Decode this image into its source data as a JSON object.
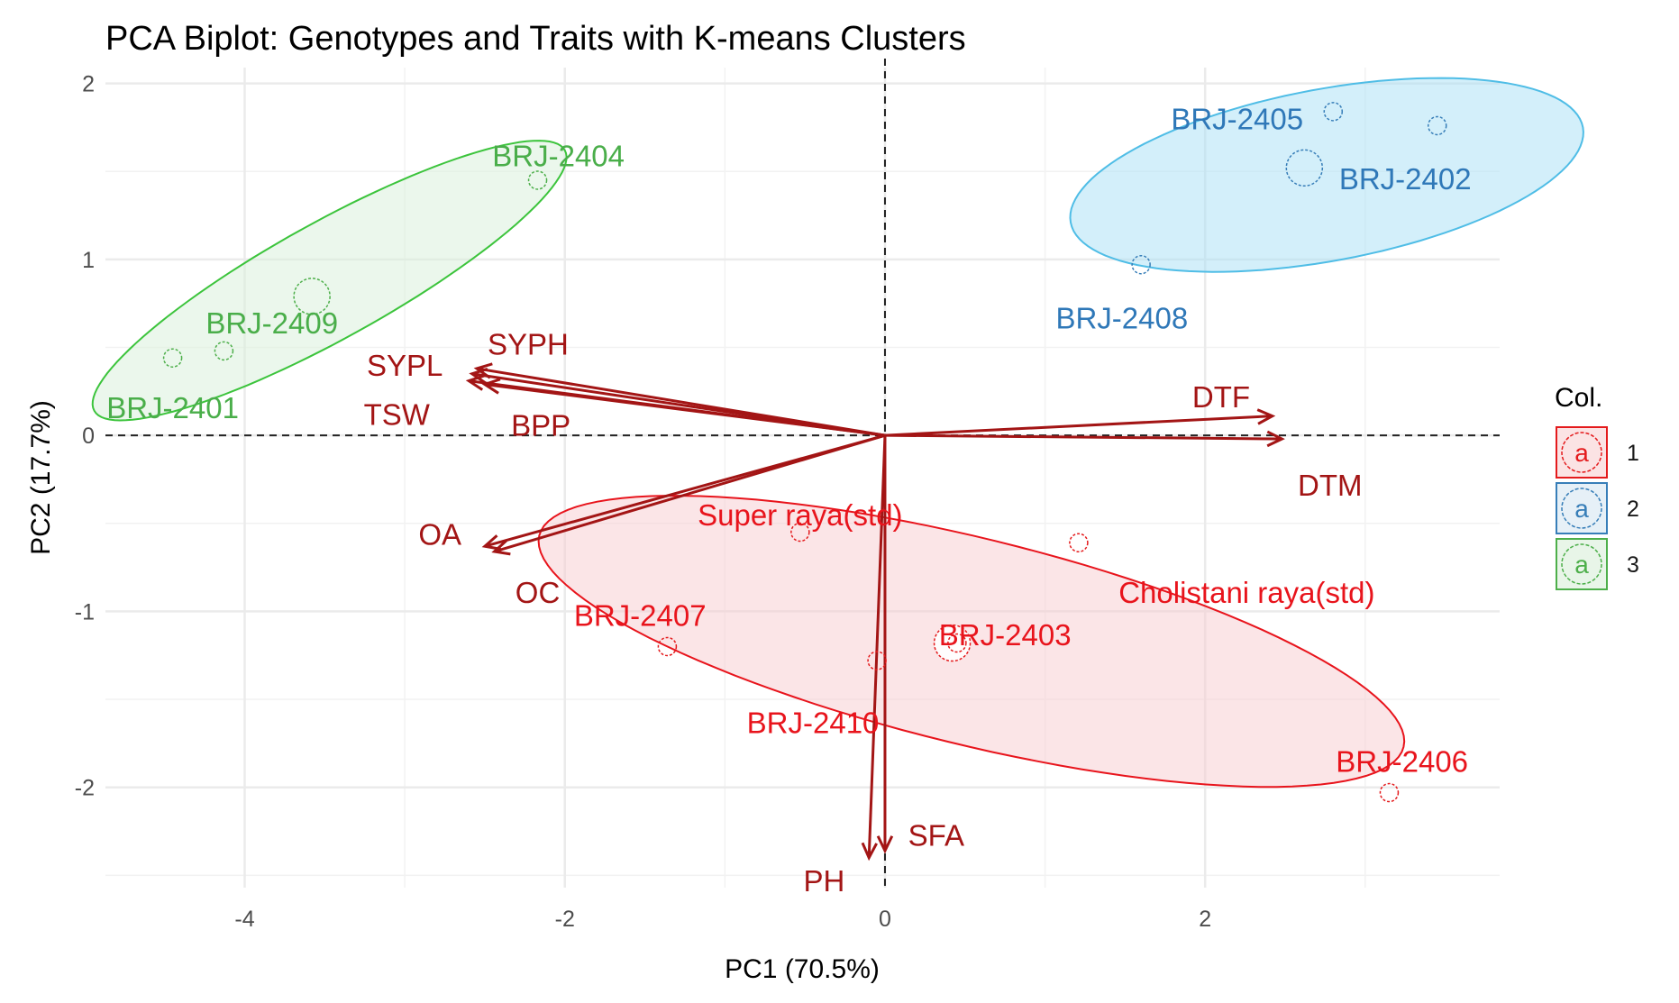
{
  "chart_data": {
    "type": "scatter",
    "title": "PCA Biplot: Genotypes and Traits with K-means Clusters",
    "xlabel": "PC1 (70.5%)",
    "ylabel": "PC2 (17.7%)",
    "xlim": [
      -4.87,
      3.84
    ],
    "ylim": [
      -2.57,
      2.09
    ],
    "x_ticks": [
      -4,
      -2,
      0,
      2
    ],
    "y_ticks": [
      -2,
      -1,
      0,
      1,
      2
    ],
    "x_minor_ticks": [
      -3,
      -1,
      1,
      3
    ],
    "y_minor_ticks": [
      -2.5,
      -1.5,
      -0.5,
      0.5,
      1.5
    ],
    "grid": true,
    "reference_lines": {
      "x": 0,
      "y": 0,
      "style": "dashed"
    },
    "legend": {
      "title": "Col.",
      "placement": "right",
      "entries": [
        {
          "label": "1",
          "glyph": "a",
          "color": "#e41a1c"
        },
        {
          "label": "2",
          "glyph": "a",
          "color": "#377eb8"
        },
        {
          "label": "3",
          "glyph": "a",
          "color": "#4daf4a"
        }
      ]
    },
    "clusters": [
      {
        "id": "1",
        "color": "#e41a1c",
        "label_color": "#e8141c",
        "fill": "#f8cbcf",
        "edge": "#e8141c",
        "ellipse": {
          "center": [
            0.54,
            -1.17
          ],
          "major": [
            2.7,
            -0.6
          ],
          "minor": [
            -0.15,
            -0.57
          ]
        },
        "centroid": [
          0.42,
          -1.18
        ]
      },
      {
        "id": "2",
        "color": "#377eb8",
        "label_color": "#2f78b8",
        "fill": "#a8e0f5",
        "edge": "#4fbde6",
        "ellipse": {
          "center": [
            2.76,
            1.48
          ],
          "major": [
            1.6,
            0.27
          ],
          "minor": [
            0.096,
            -0.48
          ]
        },
        "centroid": [
          2.62,
          1.52
        ]
      },
      {
        "id": "3",
        "color": "#4daf4a",
        "label_color": "#4aae4a",
        "fill": "#d7f0da",
        "edge": "#3cc43c",
        "ellipse": {
          "center": [
            -3.47,
            0.88
          ],
          "major": [
            1.47,
            0.74
          ],
          "minor": [
            0.175,
            -0.29
          ]
        },
        "centroid": [
          -3.58,
          0.79
        ]
      }
    ],
    "points": [
      {
        "name": "BRJ-2401",
        "x": -4.45,
        "y": 0.44,
        "cluster": "3",
        "label_dx": 0.0,
        "label_dy": -0.28,
        "anchor": "middle"
      },
      {
        "name": "BRJ-2409",
        "x": -4.13,
        "y": 0.48,
        "cluster": "3",
        "label_dx": 0.3,
        "label_dy": 0.16,
        "anchor": "middle"
      },
      {
        "name": "BRJ-2404",
        "x": -2.17,
        "y": 1.45,
        "cluster": "3",
        "label_dx": 0.13,
        "label_dy": 0.14,
        "anchor": "middle"
      },
      {
        "name": "BRJ-2405",
        "x": 2.8,
        "y": 1.84,
        "cluster": "2",
        "label_dx": -0.6,
        "label_dy": -0.04,
        "anchor": "middle"
      },
      {
        "name": "BRJ-2402",
        "x": 3.45,
        "y": 1.76,
        "cluster": "2",
        "label_dx": -0.2,
        "label_dy": -0.3,
        "anchor": "middle"
      },
      {
        "name": "BRJ-2408",
        "x": 1.6,
        "y": 0.97,
        "cluster": "2",
        "label_dx": -0.12,
        "label_dy": -0.3,
        "anchor": "middle"
      },
      {
        "name": "Super raya(std)",
        "x": -0.53,
        "y": -0.55,
        "cluster": "1",
        "label_dx": 0.0,
        "label_dy": 0.1,
        "anchor": "middle"
      },
      {
        "name": "Cholistani raya(std)",
        "x": 1.21,
        "y": -0.61,
        "cluster": "1",
        "label_dx": 1.05,
        "label_dy": -0.28,
        "anchor": "middle"
      },
      {
        "name": "BRJ-2407",
        "x": -1.36,
        "y": -1.2,
        "cluster": "1",
        "label_dx": -0.17,
        "label_dy": 0.18,
        "anchor": "middle"
      },
      {
        "name": "BRJ-2403",
        "x": 0.45,
        "y": -1.18,
        "cluster": "1",
        "label_dx": 0.3,
        "label_dy": 0.05,
        "anchor": "middle"
      },
      {
        "name": "BRJ-2410",
        "x": -0.05,
        "y": -1.28,
        "cluster": "1",
        "label_dx": -0.4,
        "label_dy": -0.35,
        "anchor": "middle"
      },
      {
        "name": "BRJ-2406",
        "x": 3.15,
        "y": -2.03,
        "cluster": "1",
        "label_dx": 0.08,
        "label_dy": 0.18,
        "anchor": "middle"
      }
    ],
    "variables": [
      {
        "name": "SYPH",
        "x": -2.55,
        "y": 0.38,
        "label_x": -2.23,
        "label_y": 0.52
      },
      {
        "name": "SYPL",
        "x": -2.58,
        "y": 0.35,
        "label_x": -3.0,
        "label_y": 0.4
      },
      {
        "name": "TSW",
        "x": -2.6,
        "y": 0.31,
        "label_x": -3.05,
        "label_y": 0.12
      },
      {
        "name": "BPP",
        "x": -2.5,
        "y": 0.29,
        "label_x": -2.15,
        "label_y": 0.06
      },
      {
        "name": "DTF",
        "x": 2.42,
        "y": 0.11,
        "label_x": 2.1,
        "label_y": 0.22
      },
      {
        "name": "DTM",
        "x": 2.48,
        "y": -0.02,
        "label_x": 2.78,
        "label_y": -0.28
      },
      {
        "name": "OA",
        "x": -2.5,
        "y": -0.63,
        "label_x": -2.78,
        "label_y": -0.56
      },
      {
        "name": "OC",
        "x": -2.44,
        "y": -0.66,
        "label_x": -2.17,
        "label_y": -0.89
      },
      {
        "name": "PH",
        "x": -0.1,
        "y": -2.4,
        "label_x": -0.38,
        "label_y": -2.53
      },
      {
        "name": "SFA",
        "x": 0.0,
        "y": -2.36,
        "label_x": 0.32,
        "label_y": -2.27
      }
    ],
    "arrow_color": "#a31515"
  }
}
